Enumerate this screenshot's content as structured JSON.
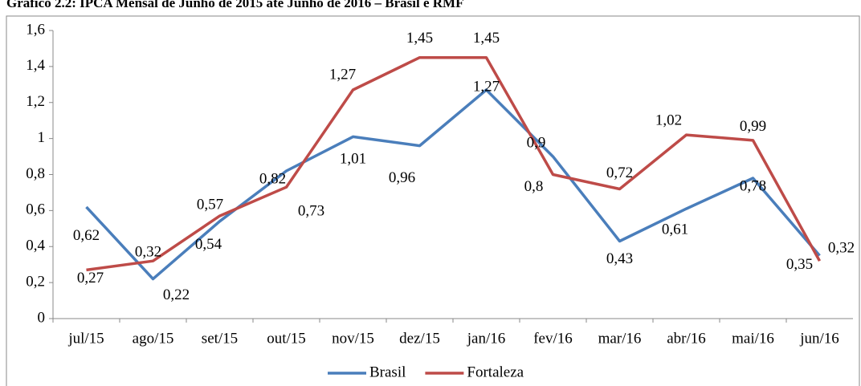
{
  "chart_data": {
    "type": "line",
    "title": "Gráfico 2.2: IPCA Mensal de Junho de 2015 até Junho de 2016 – Brasil e RMF",
    "categories": [
      "jul/15",
      "ago/15",
      "set/15",
      "out/15",
      "nov/15",
      "dez/15",
      "jan/16",
      "fev/16",
      "mar/16",
      "abr/16",
      "mai/16",
      "jun/16"
    ],
    "series": [
      {
        "name": "Brasil",
        "color": "#4a7ebb",
        "values": [
          0.62,
          0.22,
          0.54,
          0.82,
          1.01,
          0.96,
          1.27,
          0.9,
          0.43,
          0.61,
          0.78,
          0.35
        ],
        "value_labels": [
          "0,62",
          "0,22",
          "0,54",
          "0,82",
          "1,01",
          "0,96",
          "1,27",
          "0,9",
          "0,43",
          "0,61",
          "0,78",
          "0,35"
        ]
      },
      {
        "name": "Fortaleza",
        "color": "#be4b48",
        "values": [
          0.27,
          0.32,
          0.57,
          0.73,
          1.27,
          1.45,
          1.45,
          0.8,
          0.72,
          1.02,
          0.99,
          0.32
        ],
        "value_labels": [
          "0,27",
          "0,32",
          "0,57",
          "0,73",
          "1,27",
          "1,45",
          "1,45",
          "0,8",
          "0,72",
          "1,02",
          "0,99",
          "0,32"
        ]
      }
    ],
    "ylim": [
      0,
      1.6
    ],
    "yticks": [
      0,
      {
        "value": 0.2,
        "label": "0,2"
      },
      {
        "value": 0.4,
        "label": "0,4"
      },
      {
        "value": 0.6,
        "label": "0,6"
      },
      {
        "value": 0.8,
        "label": "0,8"
      },
      1,
      {
        "value": 1.2,
        "label": "1,2"
      },
      {
        "value": 1.4,
        "label": "1,4"
      },
      {
        "value": 1.6,
        "label": "1,6"
      }
    ],
    "legend": "bottom"
  }
}
